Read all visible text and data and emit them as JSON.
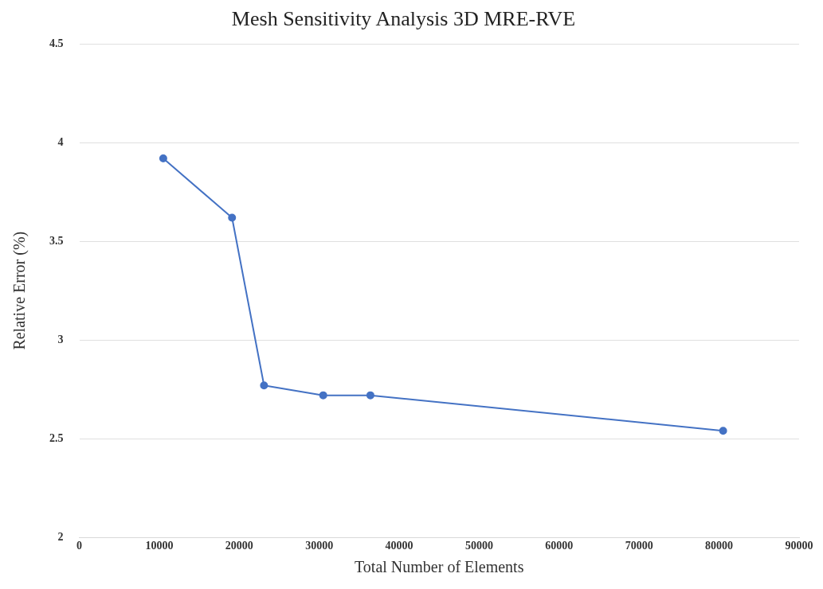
{
  "chart_data": {
    "type": "line",
    "title": "Mesh Sensitivity Analysis 3D MRE-RVE",
    "xlabel": "Total Number of Elements",
    "ylabel": "Relative Error (%)",
    "x": [
      10500,
      19100,
      23100,
      30500,
      36400,
      80500
    ],
    "series": [
      {
        "color": "#4472c4",
        "values": [
          3.92,
          3.62,
          2.77,
          2.72,
          2.72,
          2.54
        ]
      }
    ],
    "xlim": [
      0,
      90000
    ],
    "xticks": [
      0,
      10000,
      20000,
      30000,
      40000,
      50000,
      60000,
      70000,
      80000,
      90000
    ],
    "ylim": [
      2,
      4.5
    ],
    "yticks": [
      2,
      2.5,
      3,
      3.5,
      4,
      4.5
    ],
    "grid": "y",
    "legend": false,
    "marker": "circle",
    "line_style": "solid"
  }
}
